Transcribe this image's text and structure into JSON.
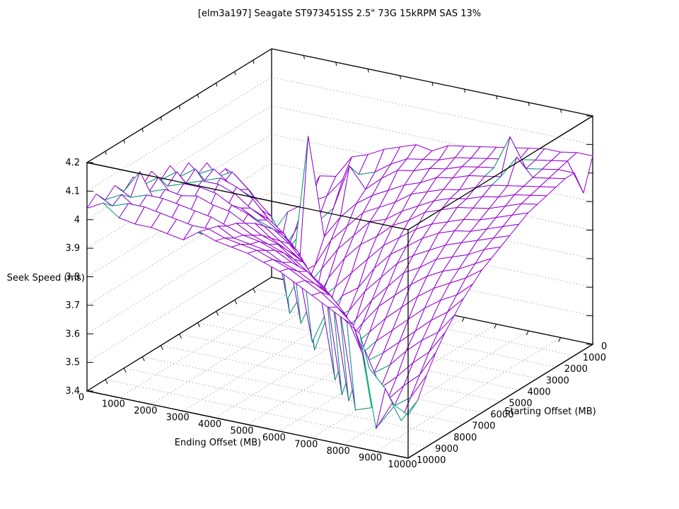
{
  "title": "[elm3a197] Seagate ST973451SS 2.5\" 73G 15kRPM SAS 13%",
  "chart_data": {
    "type": "surface",
    "title": "[elm3a197] Seagate ST973451SS 2.5\" 73G 15kRPM SAS 13%",
    "xlabel": "Ending Offset (MB)",
    "ylabel": "Starting Offset (MB)",
    "zlabel": "Seek Speed (ms)",
    "x_range": [
      0,
      10000
    ],
    "y_range": [
      0,
      10000
    ],
    "z_range": [
      3.4,
      4.2
    ],
    "grid": true,
    "legend": "none",
    "x_tick_labels": [
      "0",
      "1000",
      "2000",
      "3000",
      "4000",
      "5000",
      "6000",
      "7000",
      "8000",
      "9000",
      "10000"
    ],
    "y_tick_labels": [
      "0",
      "1000",
      "2000",
      "3000",
      "4000",
      "5000",
      "6000",
      "7000",
      "8000",
      "9000",
      "10000"
    ],
    "z_tick_labels": [
      "3.4",
      "3.5",
      "3.6",
      "3.7",
      "3.8",
      "3.9",
      "4",
      "4.1",
      "4.2"
    ],
    "z_tick_values": [
      3.4,
      3.5,
      3.6,
      3.7,
      3.8,
      3.9,
      4.0,
      4.1,
      4.2
    ],
    "colors": {
      "mesh_top": "#9400d3",
      "mesh_bottom": "#009e73",
      "axis": "#000000",
      "grid_dots": "#888888",
      "background": "#ffffff"
    },
    "x_step_mb": 500,
    "y_step_mb": 500,
    "z_grid_note": "rows = Ending Offset index (0..10000 step 500), cols = Starting Offset index (0..10000 step 500), values = seek speed ms",
    "z_grid": [
      [
        3.55,
        3.6,
        3.72,
        3.75,
        3.84,
        3.88,
        3.87,
        3.94,
        3.92,
        3.98,
        3.95,
        4.01,
        3.98,
        4.03,
        4.0,
        4.05,
        4.02,
        4.06,
        4.03,
        4.07,
        4.04
      ],
      [
        3.64,
        3.51,
        3.6,
        3.72,
        3.79,
        3.8,
        3.9,
        3.88,
        3.95,
        3.93,
        3.99,
        3.96,
        4.02,
        3.99,
        4.04,
        4.01,
        4.1,
        4.03,
        4.06,
        4.04,
        4.07
      ],
      [
        3.68,
        3.6,
        3.55,
        3.64,
        3.6,
        3.79,
        3.85,
        3.87,
        3.91,
        3.95,
        3.92,
        3.98,
        3.96,
        4.01,
        3.98,
        4.03,
        4.0,
        4.05,
        4.02,
        4.06,
        4.03
      ],
      [
        3.79,
        3.72,
        3.63,
        3.5,
        3.64,
        3.73,
        3.78,
        3.85,
        3.88,
        3.93,
        3.9,
        3.98,
        3.94,
        4.01,
        3.97,
        4.02,
        3.99,
        4.05,
        4.01,
        4.06,
        4.02
      ],
      [
        3.8,
        3.75,
        3.68,
        4.0,
        3.54,
        3.42,
        3.72,
        3.8,
        3.84,
        3.9,
        3.87,
        3.96,
        3.92,
        4.0,
        3.95,
        4.03,
        3.98,
        4.04,
        4.0,
        4.05,
        4.02
      ],
      [
        3.88,
        3.82,
        3.74,
        3.66,
        3.58,
        3.52,
        3.66,
        3.52,
        3.78,
        3.84,
        3.88,
        3.92,
        3.94,
        3.97,
        3.94,
        4.01,
        3.97,
        4.03,
        3.99,
        4.04,
        4.01
      ],
      [
        3.9,
        3.85,
        3.9,
        3.74,
        3.68,
        3.6,
        3.48,
        3.64,
        3.72,
        3.8,
        3.84,
        3.89,
        3.91,
        3.95,
        3.92,
        4.0,
        3.95,
        4.02,
        3.98,
        4.03,
        4.0
      ],
      [
        3.93,
        3.87,
        3.83,
        3.8,
        3.74,
        3.68,
        3.6,
        3.54,
        3.64,
        3.5,
        3.8,
        3.85,
        3.89,
        3.92,
        3.95,
        3.97,
        3.99,
        4.0,
        4.02,
        4.03,
        4.04
      ],
      [
        3.95,
        3.91,
        3.88,
        3.84,
        3.8,
        3.74,
        3.68,
        3.6,
        3.52,
        3.63,
        3.72,
        3.8,
        3.85,
        3.88,
        3.91,
        3.94,
        3.96,
        3.98,
        3.99,
        4.01,
        4.02
      ],
      [
        3.97,
        3.94,
        3.92,
        3.87,
        3.83,
        3.8,
        3.74,
        3.66,
        3.6,
        3.54,
        3.6,
        3.47,
        3.79,
        3.84,
        3.88,
        3.92,
        3.94,
        3.97,
        3.98,
        4.0,
        4.01
      ],
      [
        3.96,
        3.95,
        3.93,
        3.9,
        3.86,
        3.82,
        3.78,
        3.72,
        3.64,
        3.58,
        3.52,
        3.63,
        3.7,
        3.55,
        3.85,
        3.88,
        3.92,
        3.95,
        3.97,
        3.99,
        4.0
      ],
      [
        3.99,
        3.96,
        3.95,
        3.92,
        3.9,
        3.86,
        3.83,
        3.78,
        3.72,
        3.66,
        3.58,
        3.52,
        3.5,
        3.68,
        3.78,
        3.84,
        3.88,
        3.92,
        3.94,
        3.97,
        3.98
      ],
      [
        4.0,
        3.98,
        3.96,
        3.95,
        3.92,
        3.89,
        3.86,
        3.82,
        3.78,
        3.72,
        3.66,
        3.6,
        3.54,
        3.6,
        3.46,
        3.8,
        3.85,
        3.9,
        3.92,
        3.95,
        3.96
      ],
      [
        4.01,
        3.99,
        3.98,
        3.96,
        3.94,
        3.92,
        3.9,
        3.86,
        3.82,
        3.78,
        3.72,
        3.67,
        3.6,
        3.54,
        3.62,
        3.44,
        3.8,
        3.85,
        3.89,
        3.92,
        3.93
      ],
      [
        4.02,
        4.0,
        3.99,
        3.98,
        3.95,
        3.94,
        3.92,
        3.89,
        3.86,
        3.82,
        3.78,
        3.72,
        3.66,
        3.6,
        3.55,
        3.62,
        3.45,
        3.8,
        3.86,
        3.89,
        3.9
      ],
      [
        4.03,
        4.01,
        4.0,
        3.99,
        3.97,
        3.95,
        3.94,
        3.91,
        3.89,
        3.85,
        3.81,
        3.77,
        3.71,
        3.65,
        3.59,
        3.54,
        3.64,
        3.45,
        3.8,
        3.85,
        3.87
      ],
      [
        4.04,
        4.02,
        4.12,
        4.0,
        3.99,
        3.97,
        3.95,
        3.93,
        3.91,
        3.88,
        3.85,
        3.81,
        3.76,
        3.7,
        3.64,
        3.58,
        3.52,
        3.47,
        3.68,
        3.8,
        3.84
      ],
      [
        4.05,
        4.03,
        4.02,
        4.08,
        4.0,
        3.98,
        3.96,
        3.94,
        3.92,
        3.9,
        3.87,
        3.84,
        3.8,
        3.75,
        3.69,
        3.64,
        3.57,
        3.51,
        3.44,
        3.66,
        3.8
      ],
      [
        4.05,
        4.04,
        4.03,
        4.02,
        4.01,
        4.0,
        3.98,
        3.96,
        3.94,
        3.92,
        3.89,
        3.86,
        3.83,
        3.79,
        3.74,
        3.69,
        3.63,
        3.57,
        3.52,
        3.6,
        3.48
      ],
      [
        4.06,
        4.05,
        4.04,
        4.03,
        4.02,
        4.01,
        4.0,
        3.98,
        3.96,
        3.94,
        3.92,
        3.89,
        3.86,
        3.82,
        3.78,
        3.73,
        3.68,
        3.62,
        3.56,
        3.5,
        3.58
      ],
      [
        4.06,
        3.95,
        4.04,
        4.04,
        4.03,
        4.02,
        4.01,
        4.0,
        3.98,
        3.96,
        3.94,
        3.92,
        3.9,
        3.87,
        3.84,
        3.8,
        3.76,
        3.71,
        3.65,
        3.58,
        3.55
      ]
    ]
  }
}
